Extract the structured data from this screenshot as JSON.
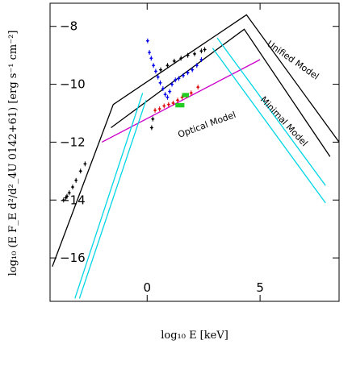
{
  "chart_data": {
    "type": "scatter",
    "title": "",
    "xlabel": "log₁₀ E [keV]",
    "ylabel": "log₁₀ (E F_E d²/d²_4U 0142+61) [erg s⁻¹ cm⁻²]",
    "xlim": [
      -4.3,
      8.5
    ],
    "ylim": [
      -17.5,
      -7.2
    ],
    "x_ticks": [
      0,
      5
    ],
    "y_ticks": [
      -8,
      -10,
      -12,
      -14,
      -16
    ],
    "grid": false,
    "legend": "none",
    "annotations": [
      "Unified Model",
      "Minimal Model",
      "Optical Model"
    ],
    "series": [
      {
        "label": "Unified Model",
        "kind": "line",
        "color": "#000000",
        "points": [
          [
            -4.2,
            -16.3
          ],
          [
            -1.5,
            -10.7
          ],
          [
            4.4,
            -7.6
          ],
          [
            8.5,
            -12.0
          ]
        ]
      },
      {
        "label": "Minimal Model",
        "kind": "line",
        "color": "#000000",
        "points": [
          [
            -1.6,
            -11.5
          ],
          [
            4.3,
            -8.1
          ],
          [
            8.1,
            -12.5
          ]
        ]
      },
      {
        "label": "Optical Model",
        "kind": "line",
        "color": "#cc00cc",
        "points": [
          [
            -2.0,
            -12.0
          ],
          [
            5.0,
            -9.15
          ]
        ]
      },
      {
        "label": "",
        "kind": "line",
        "color": "#00d6e6",
        "points": [
          [
            -3.2,
            -17.4
          ],
          [
            -0.2,
            -10.3
          ]
        ]
      },
      {
        "label": "",
        "kind": "line",
        "color": "#00d6e6",
        "points": [
          [
            -3.0,
            -17.4
          ],
          [
            -0.05,
            -10.55
          ]
        ]
      },
      {
        "label": "",
        "kind": "line",
        "color": "#00d6e6",
        "points": [
          [
            3.1,
            -8.4
          ],
          [
            7.9,
            -13.5
          ]
        ]
      },
      {
        "label": "",
        "kind": "line",
        "color": "#00d6e6",
        "points": [
          [
            2.9,
            -8.75
          ],
          [
            7.9,
            -14.1
          ]
        ]
      },
      {
        "label": "",
        "kind": "points",
        "color": "#000000",
        "points": [
          [
            -3.7,
            -14.0
          ],
          [
            -3.6,
            -13.92
          ],
          [
            -3.55,
            -13.87
          ],
          [
            -3.45,
            -13.75
          ],
          [
            -3.3,
            -13.55
          ],
          [
            -3.15,
            -13.32
          ],
          [
            -2.95,
            -13.0
          ],
          [
            -2.75,
            -12.75
          ]
        ]
      },
      {
        "label": "",
        "kind": "points",
        "color": "#0000ee",
        "points": [
          [
            0.02,
            -8.5
          ],
          [
            0.1,
            -8.9
          ],
          [
            0.18,
            -9.1
          ],
          [
            0.28,
            -9.35
          ],
          [
            0.38,
            -9.55
          ],
          [
            0.48,
            -9.75
          ],
          [
            0.58,
            -9.95
          ],
          [
            0.7,
            -10.15
          ],
          [
            0.8,
            -10.35
          ],
          [
            0.9,
            -10.45
          ],
          [
            1.0,
            -10.25
          ],
          [
            1.1,
            -10.0
          ],
          [
            1.25,
            -9.85
          ],
          [
            1.4,
            -9.8
          ],
          [
            1.6,
            -9.7
          ],
          [
            1.8,
            -9.6
          ],
          [
            2.0,
            -9.5
          ],
          [
            2.2,
            -9.35
          ],
          [
            2.4,
            -9.15
          ]
        ]
      },
      {
        "label": "",
        "kind": "points",
        "color": "#000000",
        "points": [
          [
            0.6,
            -9.5
          ],
          [
            0.9,
            -9.35
          ],
          [
            1.2,
            -9.2
          ],
          [
            1.5,
            -9.1
          ],
          [
            1.8,
            -9.0
          ],
          [
            2.1,
            -8.95
          ],
          [
            2.4,
            -8.85
          ],
          [
            2.55,
            -8.8
          ]
        ]
      },
      {
        "label": "",
        "kind": "points",
        "color": "#dd0000",
        "points": [
          [
            0.35,
            -10.9
          ],
          [
            0.55,
            -10.85
          ],
          [
            0.75,
            -10.75
          ],
          [
            0.95,
            -10.7
          ],
          [
            1.15,
            -10.65
          ],
          [
            1.35,
            -10.55
          ],
          [
            1.55,
            -10.45
          ],
          [
            1.75,
            -10.4
          ],
          [
            1.95,
            -10.3
          ],
          [
            2.25,
            -10.1
          ]
        ]
      },
      {
        "label": "",
        "kind": "points",
        "color": "#000000",
        "points": [
          [
            0.2,
            -11.5
          ],
          [
            0.25,
            -11.2
          ]
        ]
      }
    ],
    "markers": [
      {
        "color": "#22cc22",
        "x": [
          1.25,
          1.65
        ],
        "y": [
          -10.8,
          -10.65
        ]
      },
      {
        "color": "#22cc22",
        "x": [
          1.55,
          1.85
        ],
        "y": [
          -10.45,
          -10.3
        ]
      }
    ]
  }
}
